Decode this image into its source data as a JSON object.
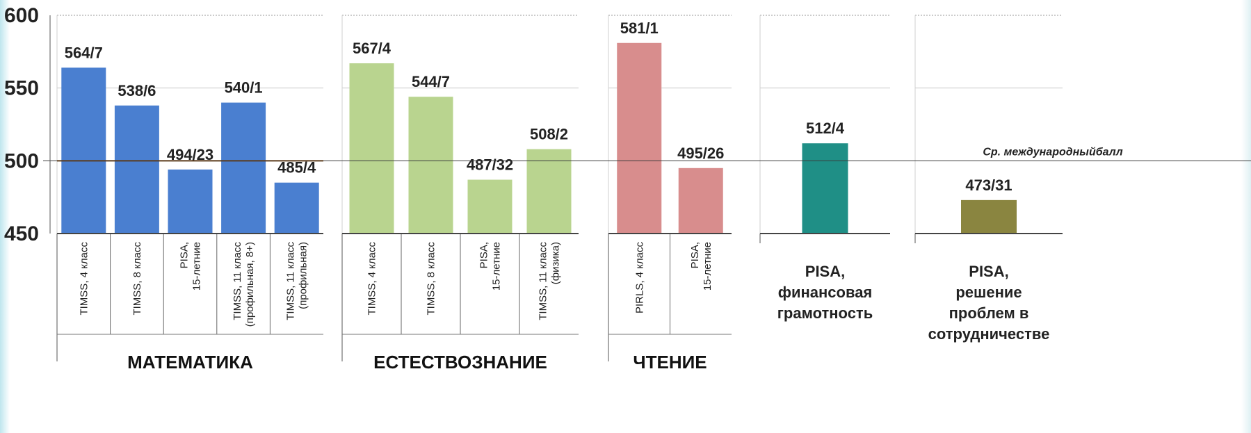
{
  "chart_data": {
    "type": "bar",
    "ylim": [
      450,
      600
    ],
    "yticks": [
      "600",
      "550",
      "500",
      "450"
    ],
    "grid": true,
    "reference_line": {
      "value": 500,
      "label": "Ср. международныйбалл"
    },
    "groups": [
      {
        "name": "МАТЕМАТИКА",
        "color": "#4a7fd0",
        "bars": [
          {
            "category": "TIMSS, 4 класс",
            "value": 564,
            "label": "564/7"
          },
          {
            "category": "TIMSS, 8 класс",
            "value": 538,
            "label": "538/6"
          },
          {
            "category": "PISA,\n15-летние",
            "value": 494,
            "label": "494/23"
          },
          {
            "category": "TIMSS, 11 класс\n(профильная, 8+)",
            "value": 540,
            "label": "540/1"
          },
          {
            "category": "TIMSS, 11 класс\n(профильная)",
            "value": 485,
            "label": "485/4"
          }
        ]
      },
      {
        "name": "ЕСТЕСТВОЗНАНИЕ",
        "color": "#b9d48f",
        "bars": [
          {
            "category": "TIMSS, 4 класс",
            "value": 567,
            "label": "567/4"
          },
          {
            "category": "TIMSS, 8 класс",
            "value": 544,
            "label": "544/7"
          },
          {
            "category": "PISA,\n15-летние",
            "value": 487,
            "label": "487/32"
          },
          {
            "category": "TIMSS, 11 класс\n(физика)",
            "value": 508,
            "label": "508/2"
          }
        ]
      },
      {
        "name": "ЧТЕНИЕ",
        "color": "#d88d8d",
        "bars": [
          {
            "category": "PIRLS, 4 класс",
            "value": 581,
            "label": "581/1"
          },
          {
            "category": "PISA,\n15-летние",
            "value": 495,
            "label": "495/26"
          }
        ]
      },
      {
        "name": "PISA,\nфинансовая\nграмотность",
        "color": "#1f8f86",
        "bars": [
          {
            "category": "",
            "value": 512,
            "label": "512/4"
          }
        ]
      },
      {
        "name": "PISA,\nрешение\nпроблем в\nсотрудничестве",
        "color": "#8a8540",
        "bars": [
          {
            "category": "",
            "value": 473,
            "label": "473/31"
          }
        ]
      }
    ]
  }
}
